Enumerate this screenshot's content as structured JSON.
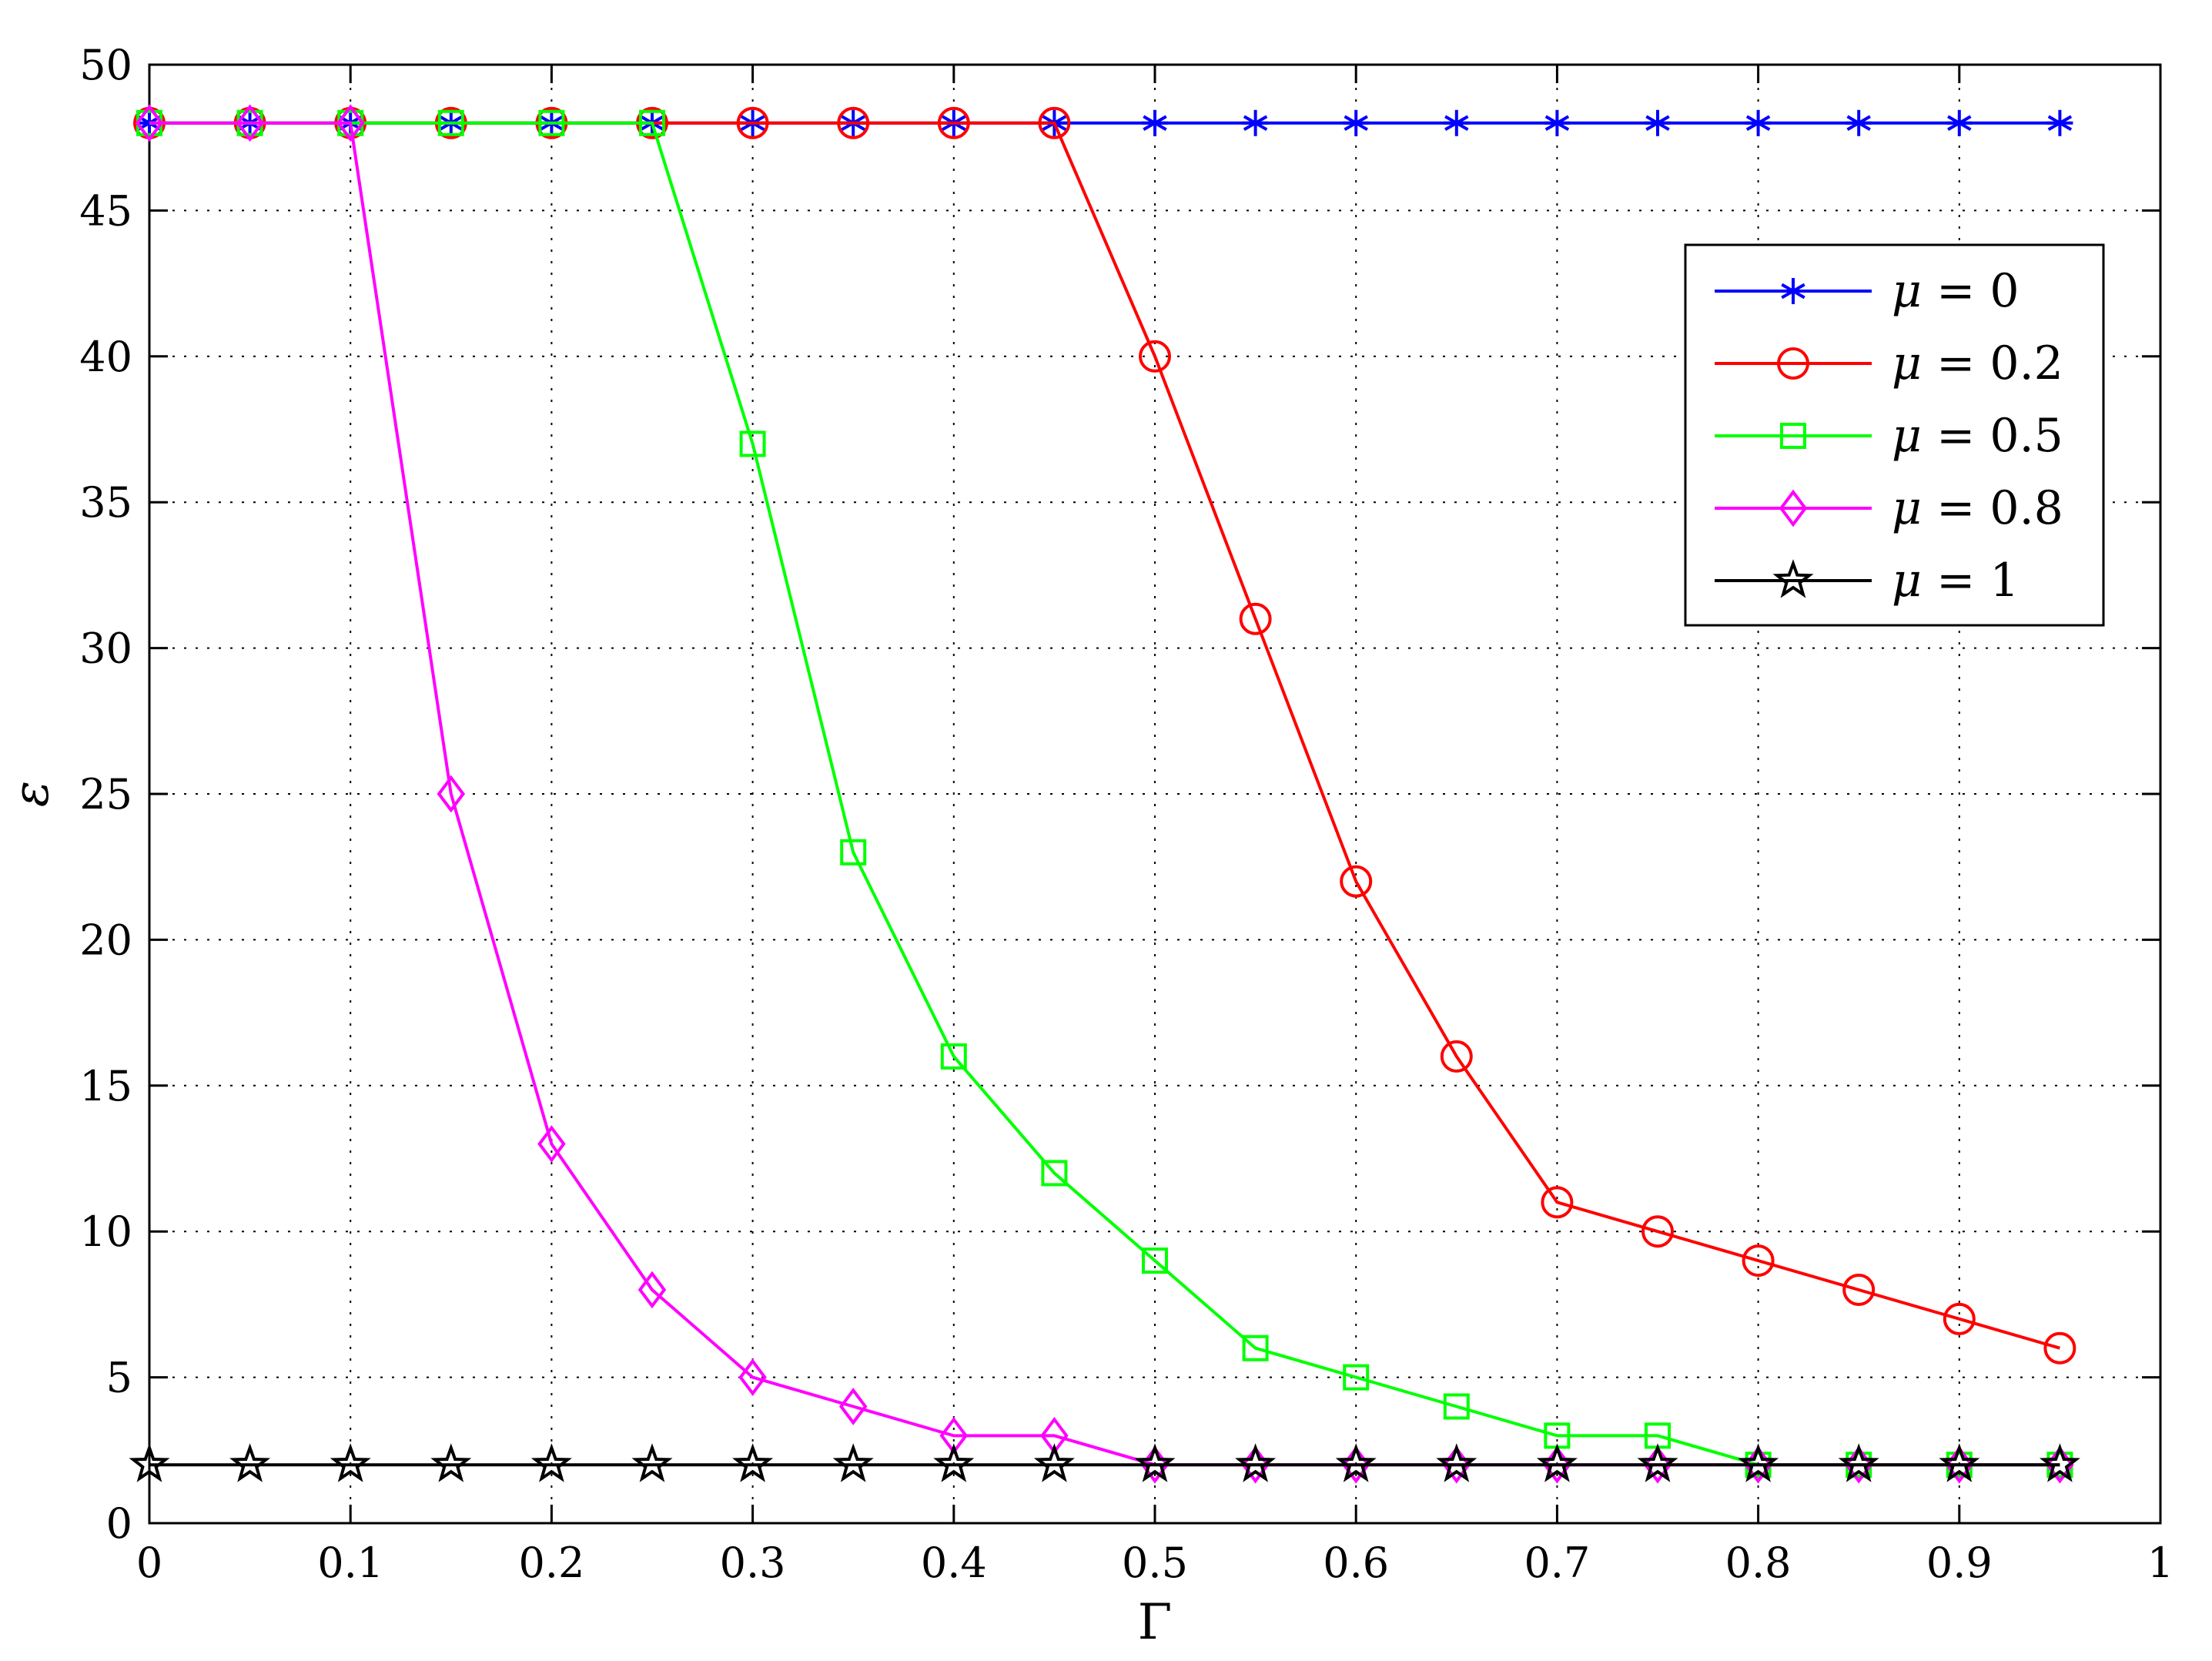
{
  "chart_data": {
    "type": "line",
    "title": "",
    "xlabel": "Γ",
    "ylabel": "ε",
    "xlim": [
      0,
      1
    ],
    "ylim": [
      0,
      50
    ],
    "xticks": [
      "0",
      "0.1",
      "0.2",
      "0.3",
      "0.4",
      "0.5",
      "0.6",
      "0.7",
      "0.8",
      "0.9",
      "1"
    ],
    "yticks": [
      "0",
      "5",
      "10",
      "15",
      "20",
      "25",
      "30",
      "35",
      "40",
      "45",
      "50"
    ],
    "grid": true,
    "legend_position": "top-right",
    "x": [
      0,
      0.05,
      0.1,
      0.15,
      0.2,
      0.25,
      0.3,
      0.35,
      0.4,
      0.45,
      0.5,
      0.55,
      0.6,
      0.65,
      0.7,
      0.75,
      0.8,
      0.85,
      0.9,
      0.95
    ],
    "series": [
      {
        "name": "μ = 0",
        "legend": {
          "var": "μ",
          "rest": " = 0"
        },
        "color": "#0000ff",
        "marker": "asterisk",
        "values": [
          48,
          48,
          48,
          48,
          48,
          48,
          48,
          48,
          48,
          48,
          48,
          48,
          48,
          48,
          48,
          48,
          48,
          48,
          48,
          48
        ]
      },
      {
        "name": "μ = 0.2",
        "legend": {
          "var": "μ",
          "rest": " = 0.2"
        },
        "color": "#ff0000",
        "marker": "circle",
        "values": [
          48,
          48,
          48,
          48,
          48,
          48,
          48,
          48,
          48,
          48,
          40,
          31,
          22,
          16,
          11,
          10,
          9,
          8,
          7,
          6
        ]
      },
      {
        "name": "μ = 0.5",
        "legend": {
          "var": "μ",
          "rest": " = 0.5"
        },
        "color": "#00ff00",
        "marker": "square",
        "values": [
          48,
          48,
          48,
          48,
          48,
          48,
          37,
          23,
          16,
          12,
          9,
          6,
          5,
          4,
          3,
          3,
          2,
          2,
          2,
          2
        ]
      },
      {
        "name": "μ = 0.8",
        "legend": {
          "var": "μ",
          "rest": " = 0.8"
        },
        "color": "#ff00ff",
        "marker": "diamond",
        "values": [
          48,
          48,
          48,
          25,
          13,
          8,
          5,
          4,
          3,
          3,
          2,
          2,
          2,
          2,
          2,
          2,
          2,
          2,
          2,
          2
        ]
      },
      {
        "name": "μ = 1",
        "legend": {
          "var": "μ",
          "rest": " = 1"
        },
        "color": "#000000",
        "marker": "star",
        "values": [
          2,
          2,
          2,
          2,
          2,
          2,
          2,
          2,
          2,
          2,
          2,
          2,
          2,
          2,
          2,
          2,
          2,
          2,
          2,
          2
        ]
      }
    ]
  }
}
